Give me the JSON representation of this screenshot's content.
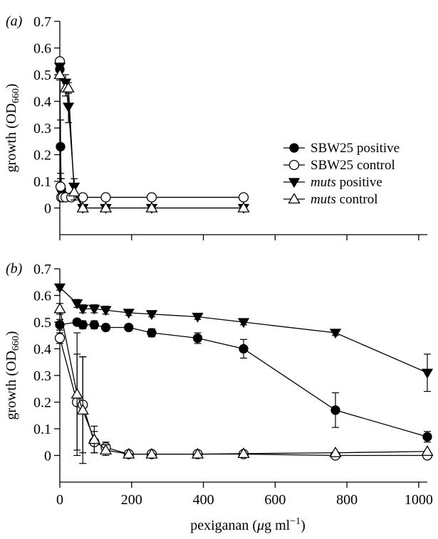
{
  "chart_data": [
    {
      "type": "scatter",
      "panel_label": "(a)",
      "ylabel": "growth (OD",
      "ylabel_sub": "660",
      "ylabel_close": ")",
      "xlim": [
        0,
        1024
      ],
      "ylim": [
        -0.1,
        0.7
      ],
      "yticks": [
        0,
        0.1,
        0.2,
        0.3,
        0.4,
        0.5,
        0.6,
        0.7
      ],
      "ytick_labels": [
        "0",
        "0.1",
        "0.2",
        "0.3",
        "0.4",
        "0.5",
        "0.6",
        "0.7"
      ],
      "show_x_tick_labels": false,
      "legend": {
        "position": "right",
        "items": [
          {
            "prefix": "SBW25",
            "suffix": " positive",
            "italic_prefix": false
          },
          {
            "prefix": "SBW25",
            "suffix": " control",
            "italic_prefix": false
          },
          {
            "prefix": "muts",
            "suffix": " positive",
            "italic_prefix": true
          },
          {
            "prefix": "muts",
            "suffix": " control",
            "italic_prefix": true
          }
        ]
      },
      "series": [
        {
          "marker": "circle-filled",
          "points": [
            [
              0,
              0.52,
              0.02
            ],
            [
              2,
              0.23,
              0.1
            ],
            [
              4,
              0.07,
              0.04
            ],
            [
              8,
              0.05,
              0.01
            ],
            [
              16,
              0.04,
              0.005
            ],
            [
              32,
              0.04,
              0.005
            ],
            [
              64,
              0.04,
              0.005
            ],
            [
              128,
              0.04,
              0.005
            ],
            [
              256,
              0.04,
              0.005
            ],
            [
              512,
              0.04,
              0.005
            ]
          ]
        },
        {
          "marker": "circle-open",
          "points": [
            [
              0,
              0.55,
              0.01
            ],
            [
              2,
              0.08,
              0.03
            ],
            [
              4,
              0.04,
              0.01
            ],
            [
              8,
              0.04,
              0.005
            ],
            [
              16,
              0.04,
              0.005
            ],
            [
              32,
              0.04,
              0.005
            ],
            [
              64,
              0.04,
              0.005
            ],
            [
              128,
              0.04,
              0.005
            ],
            [
              256,
              0.04,
              0.005
            ],
            [
              512,
              0.04,
              0.005
            ]
          ]
        },
        {
          "marker": "triangle-down-filled",
          "points": [
            [
              0,
              0.53,
              0.01
            ],
            [
              16,
              0.47,
              0.03
            ],
            [
              24,
              0.38,
              0.06
            ],
            [
              40,
              0.08,
              0.03
            ],
            [
              64,
              0.0,
              0.005
            ],
            [
              128,
              0.0,
              0.005
            ],
            [
              256,
              0.0,
              0.005
            ],
            [
              512,
              0.0,
              0.005
            ]
          ]
        },
        {
          "marker": "triangle-up-open",
          "points": [
            [
              0,
              0.5,
              0.02
            ],
            [
              16,
              0.45,
              0.03
            ],
            [
              24,
              0.45,
              0.02
            ],
            [
              40,
              0.06,
              0.03
            ],
            [
              64,
              0.0,
              0.005
            ],
            [
              128,
              0.0,
              0.005
            ],
            [
              256,
              0.0,
              0.005
            ],
            [
              512,
              0.0,
              0.005
            ]
          ]
        }
      ]
    },
    {
      "type": "scatter",
      "panel_label": "(b)",
      "ylabel": "growth (OD",
      "ylabel_sub": "660",
      "ylabel_close": ")",
      "xlabel": "pexiganan (",
      "xlabel_mu": "μ",
      "xlabel_unit": "g ml",
      "xlabel_sup": "−1",
      "xlabel_close": ")",
      "xlim": [
        0,
        1024
      ],
      "ylim": [
        -0.1,
        0.7
      ],
      "xticks": [
        0,
        200,
        400,
        600,
        800,
        1000
      ],
      "xtick_labels": [
        "0",
        "200",
        "400",
        "600",
        "800",
        "1000"
      ],
      "yticks": [
        0,
        0.1,
        0.2,
        0.3,
        0.4,
        0.5,
        0.6,
        0.7
      ],
      "ytick_labels": [
        "0",
        "0.1",
        "0.2",
        "0.3",
        "0.4",
        "0.5",
        "0.6",
        "0.7"
      ],
      "series": [
        {
          "marker": "circle-filled",
          "points": [
            [
              0,
              0.49,
              0.02
            ],
            [
              48,
              0.5,
              0.01
            ],
            [
              64,
              0.49,
              0.015
            ],
            [
              96,
              0.49,
              0.015
            ],
            [
              128,
              0.48,
              0.01
            ],
            [
              192,
              0.48,
              0.01
            ],
            [
              256,
              0.46,
              0.015
            ],
            [
              384,
              0.44,
              0.02
            ],
            [
              512,
              0.4,
              0.035
            ],
            [
              768,
              0.17,
              0.065
            ],
            [
              1024,
              0.07,
              0.02
            ]
          ]
        },
        {
          "marker": "circle-open",
          "points": [
            [
              0,
              0.44,
              0.02
            ],
            [
              48,
              0.2,
              0.18
            ],
            [
              64,
              0.19,
              0.18
            ],
            [
              96,
              0.05,
              0.04
            ],
            [
              128,
              0.03,
              0.02
            ],
            [
              192,
              0.005,
              0.005
            ],
            [
              256,
              0.005,
              0.005
            ],
            [
              384,
              0.005,
              0.005
            ],
            [
              512,
              0.005,
              0.005
            ],
            [
              768,
              0.0,
              0.005
            ],
            [
              1024,
              0.0,
              0.005
            ]
          ]
        },
        {
          "marker": "triangle-down-filled",
          "points": [
            [
              0,
              0.63,
              0.01
            ],
            [
              48,
              0.57,
              0.015
            ],
            [
              64,
              0.55,
              0.015
            ],
            [
              96,
              0.55,
              0.015
            ],
            [
              128,
              0.545,
              0.015
            ],
            [
              192,
              0.535,
              0.01
            ],
            [
              256,
              0.53,
              0.01
            ],
            [
              384,
              0.52,
              0.01
            ],
            [
              512,
              0.5,
              0.01
            ],
            [
              768,
              0.46,
              0.01
            ],
            [
              1024,
              0.31,
              0.07
            ]
          ]
        },
        {
          "marker": "triangle-up-open",
          "points": [
            [
              0,
              0.55,
              0.02
            ],
            [
              48,
              0.23,
              0.23
            ],
            [
              64,
              0.17,
              0.2
            ],
            [
              96,
              0.06,
              0.05
            ],
            [
              128,
              0.02,
              0.02
            ],
            [
              192,
              0.005,
              0.005
            ],
            [
              256,
              0.005,
              0.005
            ],
            [
              384,
              0.005,
              0.005
            ],
            [
              512,
              0.007,
              0.005
            ],
            [
              768,
              0.01,
              0.005
            ],
            [
              1024,
              0.015,
              0.005
            ]
          ]
        }
      ]
    }
  ]
}
